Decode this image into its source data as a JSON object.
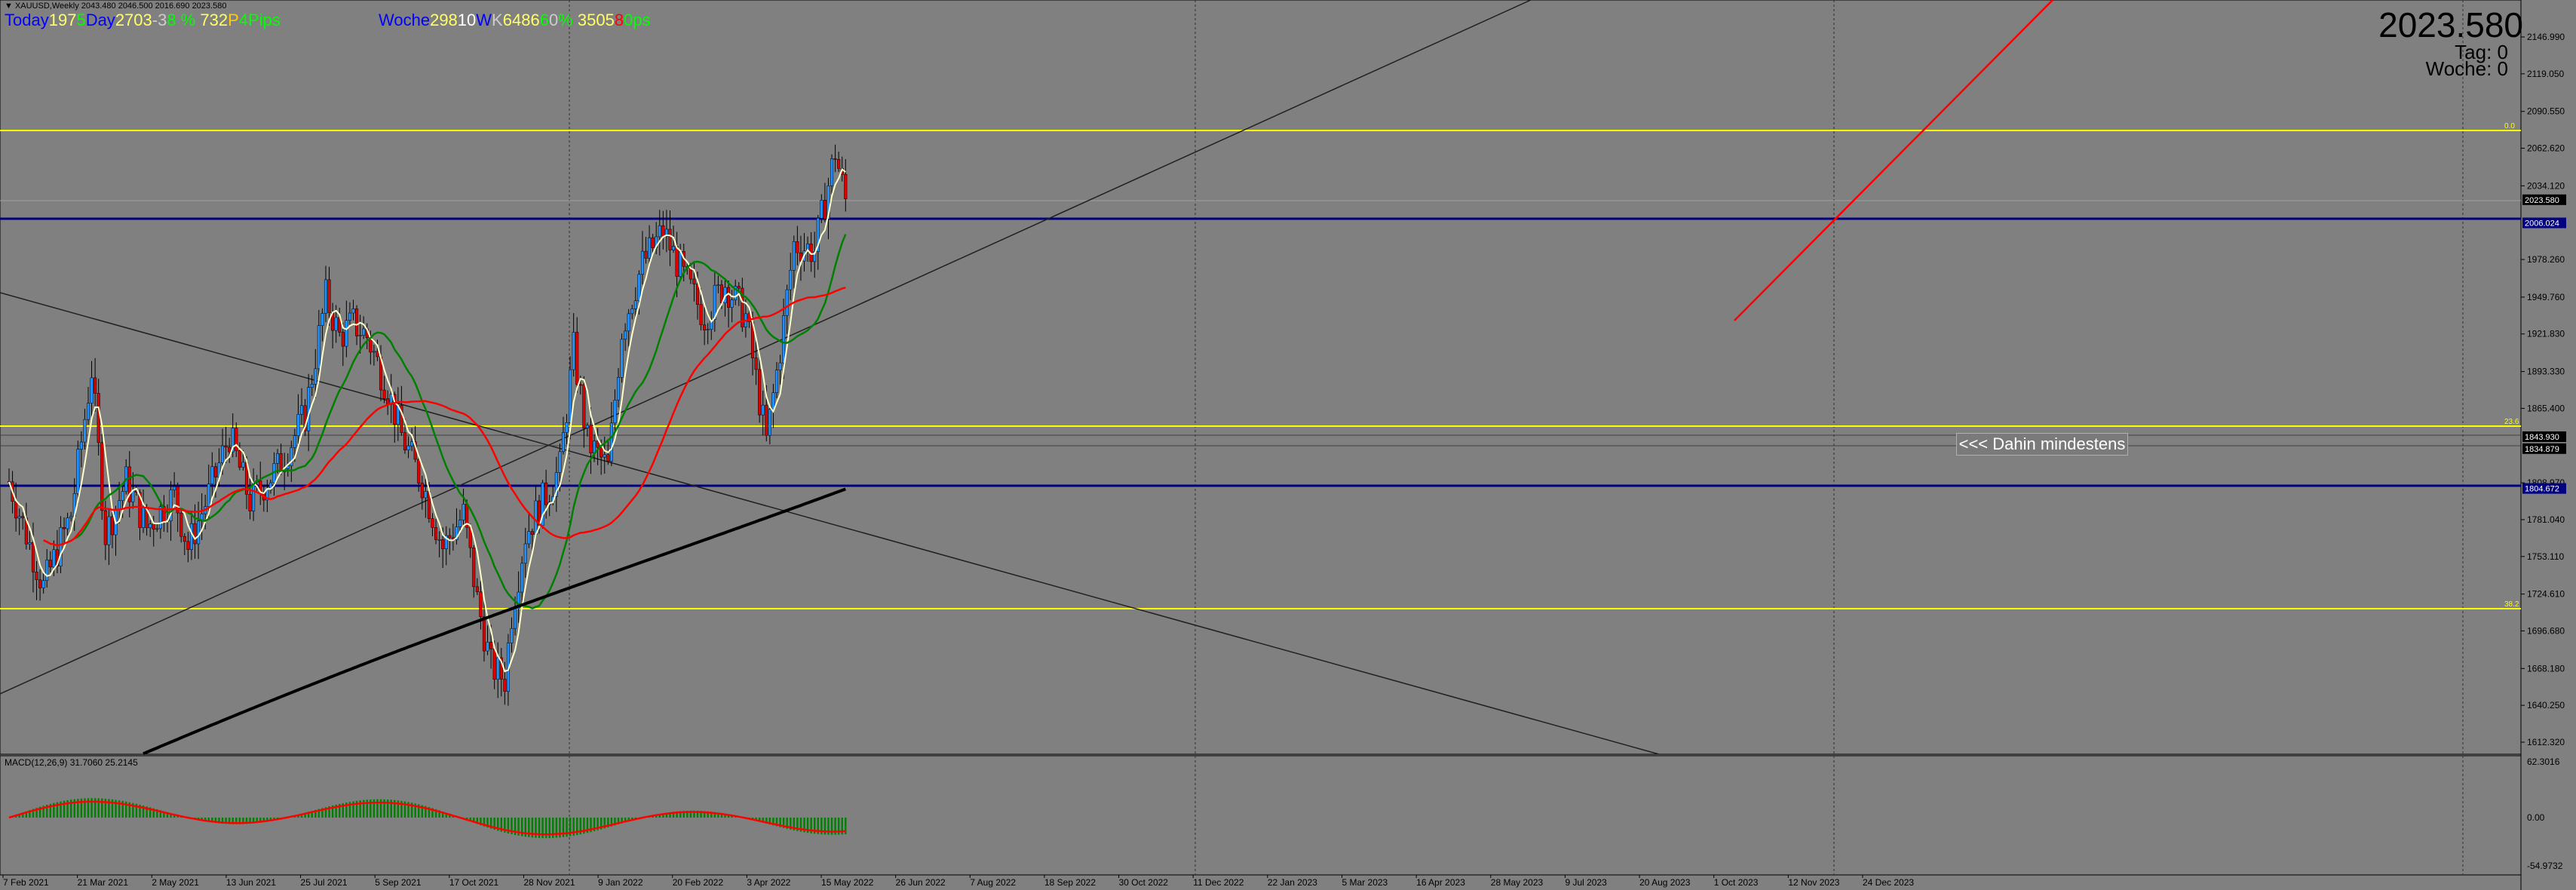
{
  "window": {
    "symbol_line": "▼ XAUUSD,Weekly  2043.480 2046.500 2016.690 2023.580",
    "current_price": "2023.580",
    "tag_text": "Tag:  0",
    "woche_text": "Woche:  0"
  },
  "stats_today": [
    {
      "text": "Today",
      "color": "#0000ff"
    },
    {
      "text": "197",
      "color": "#ffff66"
    },
    {
      "text": "5",
      "color": "#00ff00"
    },
    {
      "text": "Day",
      "color": "#0000ff"
    },
    {
      "text": "2703",
      "color": "#ffff66"
    },
    {
      "text": "-3",
      "color": "#cccccc"
    },
    {
      "text": "8 % ",
      "color": "#00ff00"
    },
    {
      "text": "732",
      "color": "#ffff66"
    },
    {
      "text": "P",
      "color": "#ffcc00"
    },
    {
      "text": "4",
      "color": "#00ff00"
    },
    {
      "text": "Pips",
      "color": "#00ff00"
    }
  ],
  "stats_week": [
    {
      "text": "Woche",
      "color": "#0000ff"
    },
    {
      "text": "298",
      "color": "#ffff66"
    },
    {
      "text": "10",
      "color": "#ffffff"
    },
    {
      "text": "W",
      "color": "#0000ff"
    },
    {
      "text": "K",
      "color": "#cccccc"
    },
    {
      "text": "6486",
      "color": "#ffff66"
    },
    {
      "text": "6",
      "color": "#00ff00"
    },
    {
      "text": "0",
      "color": "#cccccc"
    },
    {
      "text": "% ",
      "color": "#00ff00"
    },
    {
      "text": "3505",
      "color": "#ffff66"
    },
    {
      "text": "8",
      "color": "#ff0000"
    },
    {
      "text": "0",
      "color": "#00ff00"
    },
    {
      "text": "ps",
      "color": "#00ff00"
    }
  ],
  "annotation": "<<< Dahin mindestens",
  "macd_label": "MACD(12,26,9) 31.7060 25.2145",
  "price_axis_labels": [
    "2146.990",
    "2119.050",
    "2090.550",
    "2062.620",
    "2034.120",
    "1978.260",
    "1949.760",
    "1921.830",
    "1893.330",
    "1865.400",
    "1808.970",
    "1781.040",
    "1753.110",
    "1724.610",
    "1696.680",
    "1668.180",
    "1640.250",
    "1612.320"
  ],
  "price_axis_highlights": [
    {
      "value": "2023.580",
      "bg": "#000000",
      "fg": "#ffffff"
    },
    {
      "value": "2006.024",
      "bg": "#000080",
      "fg": "#ffffff"
    },
    {
      "value": "1843.930",
      "bg": "#000000",
      "fg": "#ffffff"
    },
    {
      "value": "1834.879",
      "bg": "#000000",
      "fg": "#ffffff"
    },
    {
      "value": "1804.672",
      "bg": "#000080",
      "fg": "#ffffff"
    }
  ],
  "macd_axis_labels": [
    "62.3016",
    "0.00",
    "-54.9732"
  ],
  "time_axis_labels": [
    "7 Feb 2021",
    "21 Mar 2021",
    "2 May 2021",
    "13 Jun 2021",
    "25 Jul 2021",
    "5 Sep 2021",
    "17 Oct 2021",
    "28 Nov 2021",
    "9 Jan 2022",
    "20 Feb 2022",
    "3 Apr 2022",
    "15 May 2022",
    "26 Jun 2022",
    "7 Aug 2022",
    "18 Sep 2022",
    "30 Oct 2022",
    "11 Dec 2022",
    "22 Jan 2023",
    "5 Mar 2023",
    "16 Apr 2023",
    "28 May 2023",
    "9 Jul 2023",
    "20 Aug 2023",
    "1 Oct 2023",
    "12 Nov 2023",
    "24 Dec 2023"
  ],
  "fib_labels": [
    "0.0",
    "23.6",
    "38.2"
  ],
  "colors": {
    "background": "#808080",
    "bull": "#1e90ff",
    "bear": "#e00000",
    "yellow_level": "#ffff00",
    "blue_level": "#000080",
    "ema_white": "#ffffcc",
    "ma_green": "#008000",
    "ma_red": "#ff0000",
    "ma_black": "#000000",
    "macd_hist": "#008000",
    "macd_signal": "#ff0000"
  }
}
